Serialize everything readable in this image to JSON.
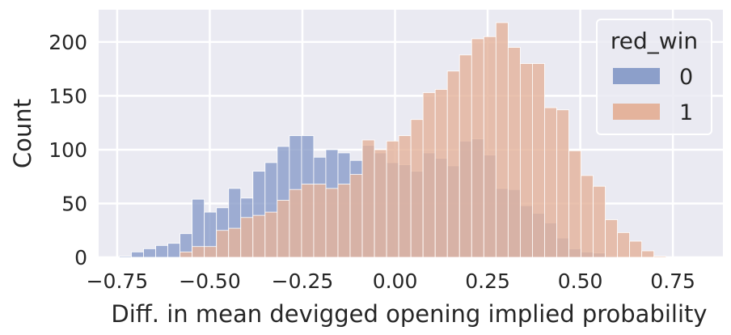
{
  "chart_data": {
    "type": "bar",
    "title": "",
    "xlabel": "Diff. in mean devigged opening implied probability",
    "ylabel": "Count",
    "xlim": [
      -0.8,
      0.885
    ],
    "ylim": [
      0,
      230
    ],
    "xticks": [
      -0.75,
      -0.5,
      -0.25,
      0.0,
      0.25,
      0.5,
      0.75
    ],
    "xtick_labels": [
      "−0.75",
      "−0.50",
      "−0.25",
      "0.00",
      "0.25",
      "0.50",
      "0.75"
    ],
    "yticks": [
      0,
      50,
      100,
      150,
      200
    ],
    "ytick_labels": [
      "0",
      "50",
      "100",
      "150",
      "200"
    ],
    "grid": true,
    "legend": {
      "title": "red_win",
      "placement": "top-right"
    },
    "bin_start": -0.7444,
    "bin_width": 0.0328,
    "series": [
      {
        "name": "0",
        "color": "#8c9fca",
        "values": [
          1,
          5,
          8,
          11,
          13,
          22,
          54,
          42,
          46,
          64,
          55,
          80,
          88,
          103,
          113,
          113,
          93,
          100,
          97,
          90,
          104,
          97,
          88,
          86,
          80,
          97,
          92,
          85,
          108,
          110,
          95,
          64,
          63,
          48,
          41,
          32,
          18,
          8,
          5,
          4,
          1,
          0,
          0
        ]
      },
      {
        "name": "1",
        "color": "#e4b39c",
        "values": [
          0,
          0,
          0,
          0,
          0,
          5,
          10,
          10,
          25,
          27,
          37,
          39,
          42,
          53,
          63,
          68,
          68,
          64,
          68,
          77,
          109,
          100,
          108,
          113,
          128,
          153,
          156,
          173,
          188,
          203,
          205,
          218,
          195,
          180,
          180,
          139,
          137,
          99,
          76,
          66,
          35,
          23,
          15,
          6,
          1
        ]
      }
    ]
  }
}
